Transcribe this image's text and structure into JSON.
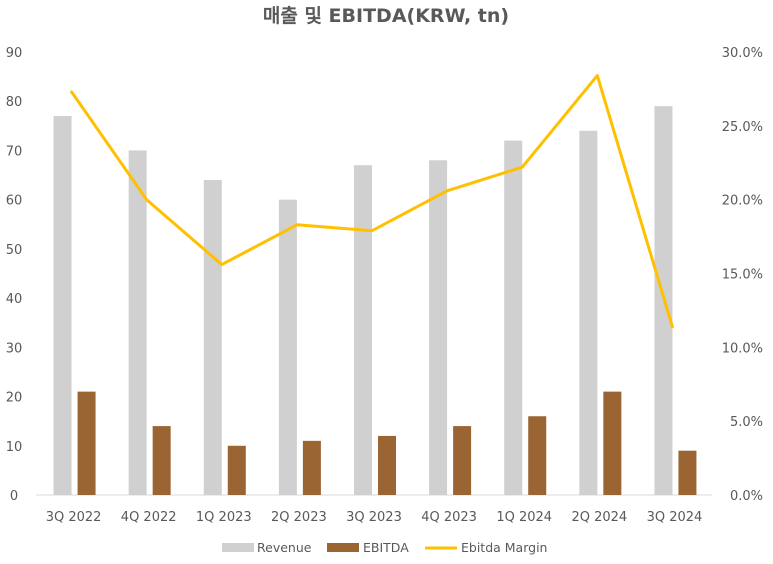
{
  "chart_data": {
    "type": "bar",
    "title": "매출 및 EBITDA(KRW, tn)",
    "categories": [
      "3Q 2022",
      "4Q 2022",
      "1Q 2023",
      "2Q 2023",
      "3Q 2023",
      "4Q 2023",
      "1Q 2024",
      "2Q 2024",
      "3Q 2024"
    ],
    "series": [
      {
        "name": "Revenue",
        "type": "bar",
        "axis": "left",
        "color": "#d0d0d0",
        "values": [
          77,
          70,
          64,
          60,
          67,
          68,
          72,
          74,
          79
        ]
      },
      {
        "name": "EBITDA",
        "type": "bar",
        "axis": "left",
        "color": "#9a6433",
        "values": [
          21,
          14,
          10,
          11,
          12,
          14,
          16,
          21,
          9
        ]
      },
      {
        "name": "Ebitda Margin",
        "type": "line",
        "axis": "right",
        "color": "#ffc000",
        "values": [
          27.3,
          20.0,
          15.6,
          18.3,
          17.9,
          20.6,
          22.2,
          28.4,
          11.4
        ]
      }
    ],
    "y_left": {
      "min": 0,
      "max": 90,
      "step": 10,
      "ticks": [
        "0",
        "10",
        "20",
        "30",
        "40",
        "50",
        "60",
        "70",
        "80",
        "90"
      ]
    },
    "y_right": {
      "min": 0,
      "max": 30,
      "step": 5,
      "ticks": [
        "0.0%",
        "5.0%",
        "10.0%",
        "15.0%",
        "20.0%",
        "25.0%",
        "30.0%"
      ]
    },
    "grid": false,
    "legend_position": "bottom"
  }
}
